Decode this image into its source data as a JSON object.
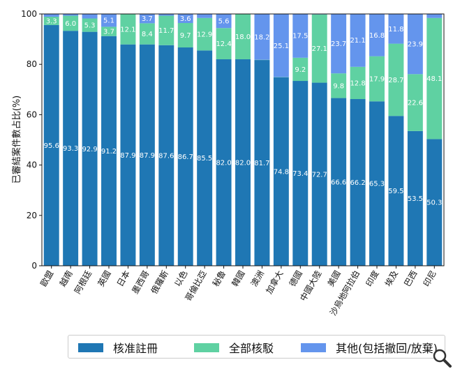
{
  "chart_data": {
    "type": "bar",
    "stacked": true,
    "ylabel": "已審結案件數占比(%)",
    "ylim": [
      0,
      100
    ],
    "yticks": [
      0,
      20,
      40,
      60,
      80,
      100
    ],
    "grid": false,
    "legend_position": "bottom",
    "categories": [
      "歐盟",
      "越南",
      "阿根廷",
      "英國",
      "日本",
      "墨西哥",
      "俄羅斯",
      "以色",
      "哥倫比亞",
      "秘魯",
      "韓國",
      "澳洲",
      "加拿大",
      "德國",
      "中國大陸",
      "美國",
      "沙烏地阿拉伯",
      "印度",
      "埃及",
      "巴西",
      "印尼"
    ],
    "series": [
      {
        "name": "核准註冊",
        "color": "#1f77b4",
        "values": [
          95.6,
          93.3,
          92.9,
          91.2,
          87.9,
          87.9,
          87.6,
          86.7,
          85.5,
          82.0,
          82.0,
          81.7,
          74.8,
          73.4,
          72.7,
          66.6,
          66.2,
          65.3,
          59.5,
          53.5,
          50.3
        ],
        "labels": [
          "95.6",
          "93.3",
          "92.9",
          "91.2",
          "87.9",
          "87.9",
          "87.6",
          "86.7",
          "85.5",
          "82.0",
          "82.0",
          "81.7",
          "74.8",
          "73.4",
          "72.7",
          "66.6",
          "66.2",
          "65.3",
          "59.5",
          "53.5",
          "50.3"
        ]
      },
      {
        "name": "全部核駁",
        "color": "#5fd1a2",
        "values": [
          3.3,
          6.0,
          5.3,
          3.7,
          12.1,
          8.4,
          11.7,
          9.7,
          12.9,
          12.4,
          18.0,
          0.1,
          0.1,
          9.2,
          27.1,
          9.8,
          12.8,
          17.9,
          28.7,
          22.6,
          48.1
        ],
        "labels": [
          "3.3",
          "6.0",
          "5.3",
          "3.7",
          "12.1",
          "8.4",
          "11.7",
          "9.7",
          "12.9",
          "12.4",
          "18.0",
          "",
          "",
          "9.2",
          "27.1",
          "9.8",
          "12.8",
          "17.9",
          "28.7",
          "22.6",
          "48.1"
        ]
      },
      {
        "name": "其他(包括撤回/放棄)",
        "color": "#6495ed",
        "values": [
          1.1,
          0.7,
          1.8,
          5.1,
          0,
          3.7,
          0.7,
          3.6,
          1.6,
          5.6,
          0,
          18.2,
          25.1,
          17.5,
          0.2,
          23.7,
          21.1,
          16.8,
          11.8,
          23.9,
          1.6
        ],
        "labels": [
          "",
          "",
          "",
          "5.1",
          "",
          "3.7",
          "",
          "3.6",
          "",
          "5.6",
          "",
          "18.2",
          "25.1",
          "17.5",
          "",
          "23.7",
          "21.1",
          "16.8",
          "11.8",
          "23.9",
          ""
        ]
      }
    ]
  },
  "legend": {
    "item1": "核准註冊",
    "item2": "全部核駁",
    "item3": "其他(包括撤回/放棄)"
  },
  "icons": {
    "zoom": "magnifier-icon"
  }
}
